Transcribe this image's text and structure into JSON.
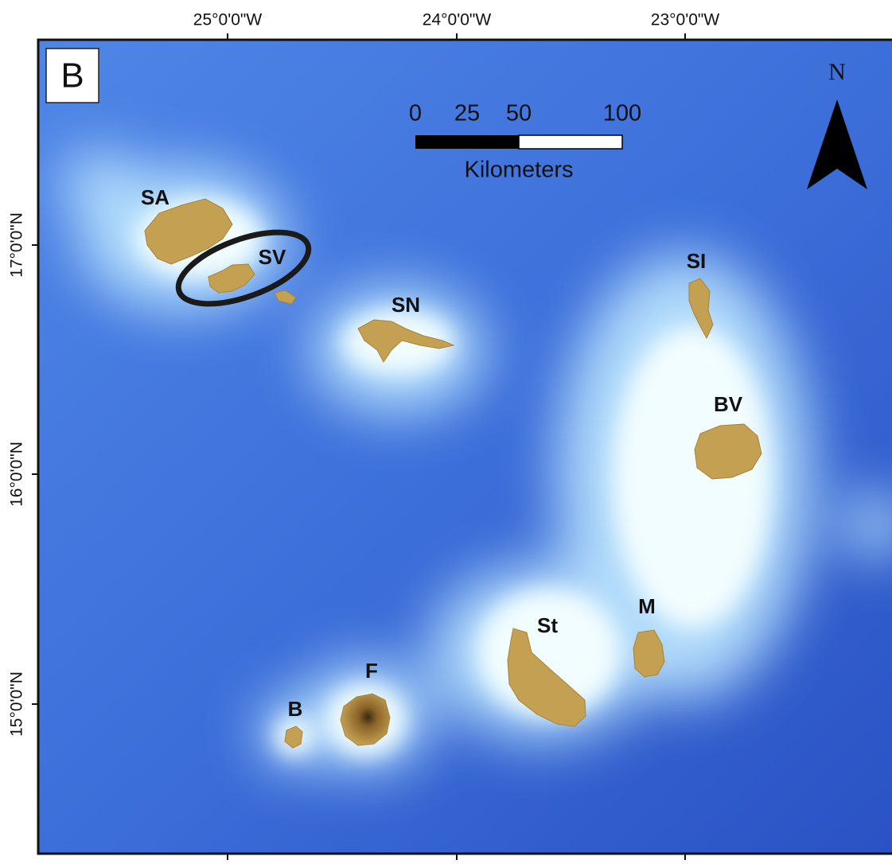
{
  "panel_label": "B",
  "longitude_labels": [
    "25°0'0\"W",
    "24°0'0\"W",
    "23°0'0\"W"
  ],
  "latitude_labels": [
    "17°0'0\"N",
    "16°0'0\"N",
    "15°0'0\"N"
  ],
  "scale_bar": {
    "ticks": [
      0,
      25,
      50,
      100
    ],
    "unit": "Kilometers"
  },
  "north_label": "N",
  "islands": [
    {
      "label": "SA"
    },
    {
      "label": "SV"
    },
    {
      "label": "SN"
    },
    {
      "label": "SI"
    },
    {
      "label": "BV"
    },
    {
      "label": "St"
    },
    {
      "label": "M"
    },
    {
      "label": "F"
    },
    {
      "label": "B"
    }
  ]
}
